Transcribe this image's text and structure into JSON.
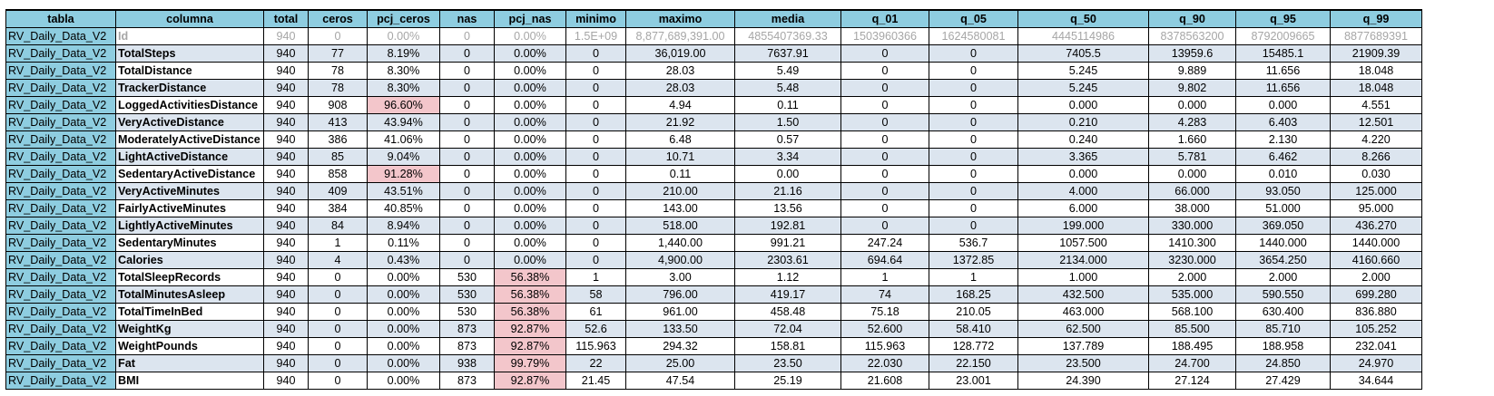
{
  "headers": [
    "tabla",
    "columna",
    "total",
    "ceros",
    "pcj_ceros",
    "nas",
    "pcj_nas",
    "minimo",
    "maximo",
    "media",
    "q_01",
    "q_05",
    "q_50",
    "q_90",
    "q_95",
    "q_99"
  ],
  "highlight_color": "#f3c6cb",
  "header_color": "#8ecde0",
  "rows": [
    [
      "RV_Daily_Data_V2",
      "Id",
      "940",
      "0",
      "0.00%",
      "0",
      "0.00%",
      "1.5E+09",
      "8,877,689,391.00",
      "4855407369.33",
      "1503960366",
      "1624580081",
      "4445114986",
      "8378563200",
      "8792009665",
      "8877689391"
    ],
    [
      "RV_Daily_Data_V2",
      "TotalSteps",
      "940",
      "77",
      "8.19%",
      "0",
      "0.00%",
      "0",
      "36,019.00",
      "7637.91",
      "0",
      "0",
      "7405.5",
      "13959.6",
      "15485.1",
      "21909.39"
    ],
    [
      "RV_Daily_Data_V2",
      "TotalDistance",
      "940",
      "78",
      "8.30%",
      "0",
      "0.00%",
      "0",
      "28.03",
      "5.49",
      "0",
      "0",
      "5.245",
      "9.889",
      "11.656",
      "18.048"
    ],
    [
      "RV_Daily_Data_V2",
      "TrackerDistance",
      "940",
      "78",
      "8.30%",
      "0",
      "0.00%",
      "0",
      "28.03",
      "5.48",
      "0",
      "0",
      "5.245",
      "9.802",
      "11.656",
      "18.048"
    ],
    [
      "RV_Daily_Data_V2",
      "LoggedActivitiesDistance",
      "940",
      "908",
      "96.60%",
      "0",
      "0.00%",
      "0",
      "4.94",
      "0.11",
      "0",
      "0",
      "0.000",
      "0.000",
      "0.000",
      "4.551"
    ],
    [
      "RV_Daily_Data_V2",
      "VeryActiveDistance",
      "940",
      "413",
      "43.94%",
      "0",
      "0.00%",
      "0",
      "21.92",
      "1.50",
      "0",
      "0",
      "0.210",
      "4.283",
      "6.403",
      "12.501"
    ],
    [
      "RV_Daily_Data_V2",
      "ModeratelyActiveDistance",
      "940",
      "386",
      "41.06%",
      "0",
      "0.00%",
      "0",
      "6.48",
      "0.57",
      "0",
      "0",
      "0.240",
      "1.660",
      "2.130",
      "4.220"
    ],
    [
      "RV_Daily_Data_V2",
      "LightActiveDistance",
      "940",
      "85",
      "9.04%",
      "0",
      "0.00%",
      "0",
      "10.71",
      "3.34",
      "0",
      "0",
      "3.365",
      "5.781",
      "6.462",
      "8.266"
    ],
    [
      "RV_Daily_Data_V2",
      "SedentaryActiveDistance",
      "940",
      "858",
      "91.28%",
      "0",
      "0.00%",
      "0",
      "0.11",
      "0.00",
      "0",
      "0",
      "0.000",
      "0.000",
      "0.010",
      "0.030"
    ],
    [
      "RV_Daily_Data_V2",
      "VeryActiveMinutes",
      "940",
      "409",
      "43.51%",
      "0",
      "0.00%",
      "0",
      "210.00",
      "21.16",
      "0",
      "0",
      "4.000",
      "66.000",
      "93.050",
      "125.000"
    ],
    [
      "RV_Daily_Data_V2",
      "FairlyActiveMinutes",
      "940",
      "384",
      "40.85%",
      "0",
      "0.00%",
      "0",
      "143.00",
      "13.56",
      "0",
      "0",
      "6.000",
      "38.000",
      "51.000",
      "95.000"
    ],
    [
      "RV_Daily_Data_V2",
      "LightlyActiveMinutes",
      "940",
      "84",
      "8.94%",
      "0",
      "0.00%",
      "0",
      "518.00",
      "192.81",
      "0",
      "0",
      "199.000",
      "330.000",
      "369.050",
      "436.270"
    ],
    [
      "RV_Daily_Data_V2",
      "SedentaryMinutes",
      "940",
      "1",
      "0.11%",
      "0",
      "0.00%",
      "0",
      "1,440.00",
      "991.21",
      "247.24",
      "536.7",
      "1057.500",
      "1410.300",
      "1440.000",
      "1440.000"
    ],
    [
      "RV_Daily_Data_V2",
      "Calories",
      "940",
      "4",
      "0.43%",
      "0",
      "0.00%",
      "0",
      "4,900.00",
      "2303.61",
      "694.64",
      "1372.85",
      "2134.000",
      "3230.000",
      "3654.250",
      "4160.660"
    ],
    [
      "RV_Daily_Data_V2",
      "TotalSleepRecords",
      "940",
      "0",
      "0.00%",
      "530",
      "56.38%",
      "1",
      "3.00",
      "1.12",
      "1",
      "1",
      "1.000",
      "2.000",
      "2.000",
      "2.000"
    ],
    [
      "RV_Daily_Data_V2",
      "TotalMinutesAsleep",
      "940",
      "0",
      "0.00%",
      "530",
      "56.38%",
      "58",
      "796.00",
      "419.17",
      "74",
      "168.25",
      "432.500",
      "535.000",
      "590.550",
      "699.280"
    ],
    [
      "RV_Daily_Data_V2",
      "TotalTimeInBed",
      "940",
      "0",
      "0.00%",
      "530",
      "56.38%",
      "61",
      "961.00",
      "458.48",
      "75.18",
      "210.05",
      "463.000",
      "568.100",
      "630.400",
      "836.880"
    ],
    [
      "RV_Daily_Data_V2",
      "WeightKg",
      "940",
      "0",
      "0.00%",
      "873",
      "92.87%",
      "52.6",
      "133.50",
      "72.04",
      "52.600",
      "58.410",
      "62.500",
      "85.500",
      "85.710",
      "105.252"
    ],
    [
      "RV_Daily_Data_V2",
      "WeightPounds",
      "940",
      "0",
      "0.00%",
      "873",
      "92.87%",
      "115.963",
      "294.32",
      "158.81",
      "115.963",
      "128.772",
      "137.789",
      "188.495",
      "188.958",
      "232.041"
    ],
    [
      "RV_Daily_Data_V2",
      "Fat",
      "940",
      "0",
      "0.00%",
      "938",
      "99.79%",
      "22",
      "25.00",
      "23.50",
      "22.030",
      "22.150",
      "23.500",
      "24.700",
      "24.850",
      "24.970"
    ],
    [
      "RV_Daily_Data_V2",
      "BMI",
      "940",
      "0",
      "0.00%",
      "873",
      "92.87%",
      "21.45",
      "47.54",
      "25.19",
      "21.608",
      "23.001",
      "24.390",
      "27.124",
      "27.429",
      "34.644"
    ]
  ],
  "highlights": [
    {
      "row": 4,
      "col": 4
    },
    {
      "row": 8,
      "col": 4
    },
    {
      "row": 14,
      "col": 6
    },
    {
      "row": 15,
      "col": 6
    },
    {
      "row": 16,
      "col": 6
    },
    {
      "row": 17,
      "col": 6
    },
    {
      "row": 18,
      "col": 6
    },
    {
      "row": 19,
      "col": 6
    },
    {
      "row": 20,
      "col": 6
    }
  ],
  "faded_rows": [
    0
  ]
}
